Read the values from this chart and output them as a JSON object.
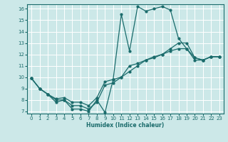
{
  "title": "",
  "xlabel": "Humidex (Indice chaleur)",
  "bg_color": "#cce8e8",
  "grid_color": "#ffffff",
  "line_color": "#1a6b6b",
  "xlim": [
    -0.5,
    23.5
  ],
  "ylim": [
    6.8,
    16.4
  ],
  "xticks": [
    0,
    1,
    2,
    3,
    4,
    5,
    6,
    7,
    8,
    9,
    10,
    11,
    12,
    13,
    14,
    15,
    16,
    17,
    18,
    19,
    20,
    21,
    22,
    23
  ],
  "yticks": [
    7,
    8,
    9,
    10,
    11,
    12,
    13,
    14,
    15,
    16
  ],
  "line1_x": [
    0,
    1,
    2,
    3,
    4,
    5,
    6,
    7,
    8,
    9,
    10,
    11,
    12,
    13,
    14,
    15,
    16,
    17,
    18,
    19,
    20,
    21,
    22,
    23
  ],
  "line1_y": [
    9.9,
    9.0,
    8.5,
    7.8,
    8.0,
    7.2,
    7.2,
    7.0,
    8.0,
    6.9,
    9.8,
    15.5,
    12.3,
    16.2,
    15.8,
    16.0,
    16.2,
    15.9,
    13.4,
    12.5,
    11.7,
    11.5,
    11.8,
    11.8
  ],
  "line2_x": [
    0,
    1,
    2,
    3,
    4,
    5,
    6,
    7,
    8,
    9,
    10,
    11,
    12,
    13,
    14,
    15,
    16,
    17,
    18,
    19,
    20,
    21,
    22,
    23
  ],
  "line2_y": [
    9.9,
    9.0,
    8.5,
    8.0,
    8.0,
    7.5,
    7.5,
    7.2,
    7.8,
    9.3,
    9.5,
    10.0,
    10.5,
    11.0,
    11.5,
    11.8,
    12.0,
    12.3,
    12.5,
    12.5,
    11.5,
    11.5,
    11.8,
    11.8
  ],
  "line3_x": [
    0,
    1,
    2,
    3,
    4,
    5,
    6,
    7,
    8,
    9,
    10,
    11,
    12,
    13,
    14,
    15,
    16,
    17,
    18,
    19,
    20,
    21,
    22,
    23
  ],
  "line3_y": [
    9.9,
    9.0,
    8.5,
    8.1,
    8.2,
    7.8,
    7.8,
    7.5,
    8.2,
    9.6,
    9.8,
    10.0,
    11.0,
    11.2,
    11.5,
    11.7,
    12.0,
    12.5,
    13.0,
    13.0,
    11.7,
    11.5,
    11.8,
    11.8
  ]
}
